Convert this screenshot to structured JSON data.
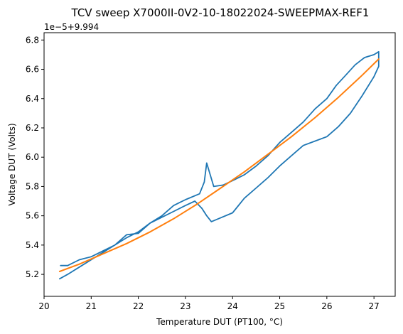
{
  "chart_data": {
    "type": "line",
    "title": "TCV sweep X7000II-0V2-10-18022024-SWEEPMAX-REF1",
    "xlabel": "Temperature DUT (PT100, °C)",
    "ylabel": "Voltage DUT (Volts)",
    "offset_label": "1e−5+9.994",
    "xlim": [
      20.0,
      27.45
    ],
    "ylim": [
      5.05,
      6.85
    ],
    "xticks": [
      20,
      21,
      22,
      23,
      24,
      25,
      26,
      27
    ],
    "yticks": [
      5.2,
      5.4,
      5.6,
      5.8,
      6.0,
      6.2,
      6.4,
      6.6,
      6.8
    ],
    "x_tick_labels": [
      "20",
      "21",
      "22",
      "23",
      "24",
      "25",
      "26",
      "27"
    ],
    "y_tick_labels": [
      "5.2",
      "5.4",
      "5.6",
      "5.8",
      "6.0",
      "6.2",
      "6.4",
      "6.6",
      "6.8"
    ],
    "grid": false,
    "series": [
      {
        "color": "#1f77b4",
        "x": [
          20.33,
          20.5,
          20.75,
          21.0,
          21.25,
          21.5,
          21.75,
          22.0,
          22.25,
          22.5,
          22.75,
          23.0,
          23.2,
          23.35,
          23.45,
          23.55,
          23.7,
          24.0,
          24.25,
          24.5,
          24.75,
          25.0,
          25.25,
          25.5,
          25.75,
          26.0,
          26.25,
          26.5,
          26.75,
          27.0,
          27.1,
          27.1,
          27.0,
          26.8,
          26.6,
          26.4,
          26.2,
          26.0,
          25.75,
          25.5,
          25.25,
          25.0,
          24.75,
          24.5,
          24.25,
          24.0,
          23.8,
          23.6,
          23.45,
          23.4,
          23.3,
          23.0,
          22.75,
          22.5,
          22.25,
          22.0,
          21.75,
          21.5,
          21.25,
          21.0,
          20.75,
          20.5,
          20.35
        ],
        "y": [
          5.17,
          5.2,
          5.25,
          5.3,
          5.35,
          5.4,
          5.45,
          5.49,
          5.55,
          5.59,
          5.63,
          5.67,
          5.7,
          5.65,
          5.6,
          5.56,
          5.58,
          5.62,
          5.72,
          5.79,
          5.86,
          5.94,
          6.01,
          6.08,
          6.11,
          6.14,
          6.21,
          6.3,
          6.42,
          6.55,
          6.62,
          6.72,
          6.7,
          6.68,
          6.63,
          6.56,
          6.49,
          6.4,
          6.33,
          6.24,
          6.17,
          6.1,
          6.01,
          5.94,
          5.88,
          5.84,
          5.81,
          5.8,
          5.96,
          5.83,
          5.75,
          5.71,
          5.67,
          5.6,
          5.55,
          5.48,
          5.47,
          5.4,
          5.36,
          5.32,
          5.3,
          5.26,
          5.26
        ]
      },
      {
        "color": "#ff7f0e",
        "x": [
          20.33,
          20.75,
          21.25,
          21.75,
          22.25,
          22.75,
          23.25,
          23.75,
          24.25,
          24.75,
          25.25,
          25.75,
          26.25,
          26.75,
          27.1
        ],
        "y": [
          5.22,
          5.27,
          5.34,
          5.41,
          5.49,
          5.58,
          5.68,
          5.79,
          5.9,
          6.02,
          6.14,
          6.27,
          6.41,
          6.56,
          6.67
        ]
      }
    ]
  }
}
